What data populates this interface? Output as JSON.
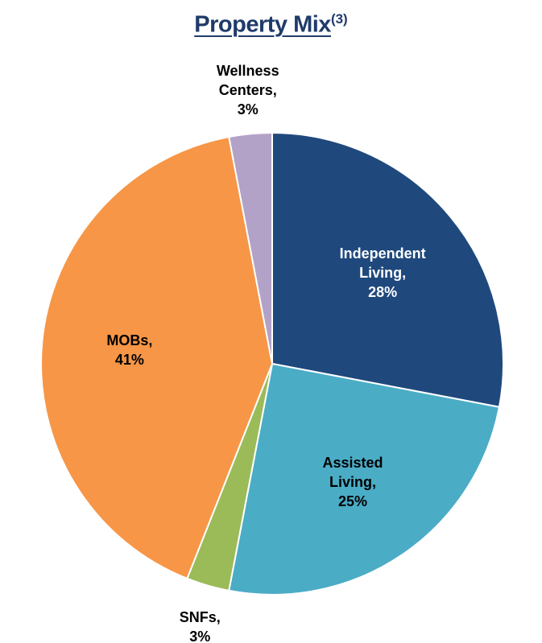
{
  "chart_data": {
    "type": "pie",
    "title": "Property Mix",
    "title_superscript": "(3)",
    "categories": [
      "Independent Living,",
      "Assisted Living,",
      "SNFs,",
      "MOBs,",
      "Wellness Centers,"
    ],
    "values": [
      28,
      25,
      3,
      41,
      3
    ],
    "value_labels": [
      "28%",
      "25%",
      "3%",
      "41%",
      "3%"
    ],
    "colors": [
      "#1f497d",
      "#4bacc6",
      "#9bbb59",
      "#f79646",
      "#b3a2c7"
    ]
  }
}
